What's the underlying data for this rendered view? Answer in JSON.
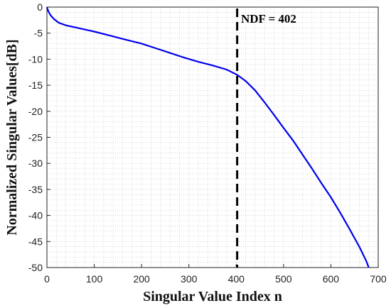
{
  "chart_data": {
    "type": "line",
    "title": "",
    "xlabel": "Singular Value Index n",
    "ylabel": "Normalized Singular Values[dB]",
    "xlim": [
      0,
      700
    ],
    "ylim": [
      -50,
      0
    ],
    "xticks": [
      0,
      100,
      200,
      300,
      400,
      500,
      600,
      700
    ],
    "yticks": [
      0,
      -5,
      -10,
      -15,
      -20,
      -25,
      -30,
      -35,
      -40,
      -45,
      -50
    ],
    "grid": "dotted-minor",
    "series": [
      {
        "color": "#0000ee",
        "x": [
          0,
          3,
          8,
          15,
          25,
          40,
          60,
          80,
          100,
          130,
          160,
          200,
          230,
          260,
          290,
          320,
          350,
          380,
          402,
          420,
          440,
          460,
          480,
          500,
          520,
          540,
          560,
          580,
          600,
          620,
          640,
          660,
          675,
          680
        ],
        "y": [
          0,
          -0.8,
          -1.6,
          -2.3,
          -3.0,
          -3.5,
          -3.9,
          -4.3,
          -4.7,
          -5.4,
          -6.1,
          -7.0,
          -7.9,
          -8.8,
          -9.7,
          -10.5,
          -11.2,
          -12.0,
          -13.0,
          -14.2,
          -16.0,
          -18.3,
          -20.7,
          -23.2,
          -25.6,
          -28.3,
          -31.0,
          -33.8,
          -36.5,
          -39.5,
          -42.7,
          -46.0,
          -48.8,
          -50.0
        ]
      }
    ],
    "vline": {
      "x": 402,
      "style": "dashed",
      "color": "#000000"
    },
    "annotation": {
      "text": "NDF = 402",
      "x": 410,
      "y": -2.2
    }
  }
}
